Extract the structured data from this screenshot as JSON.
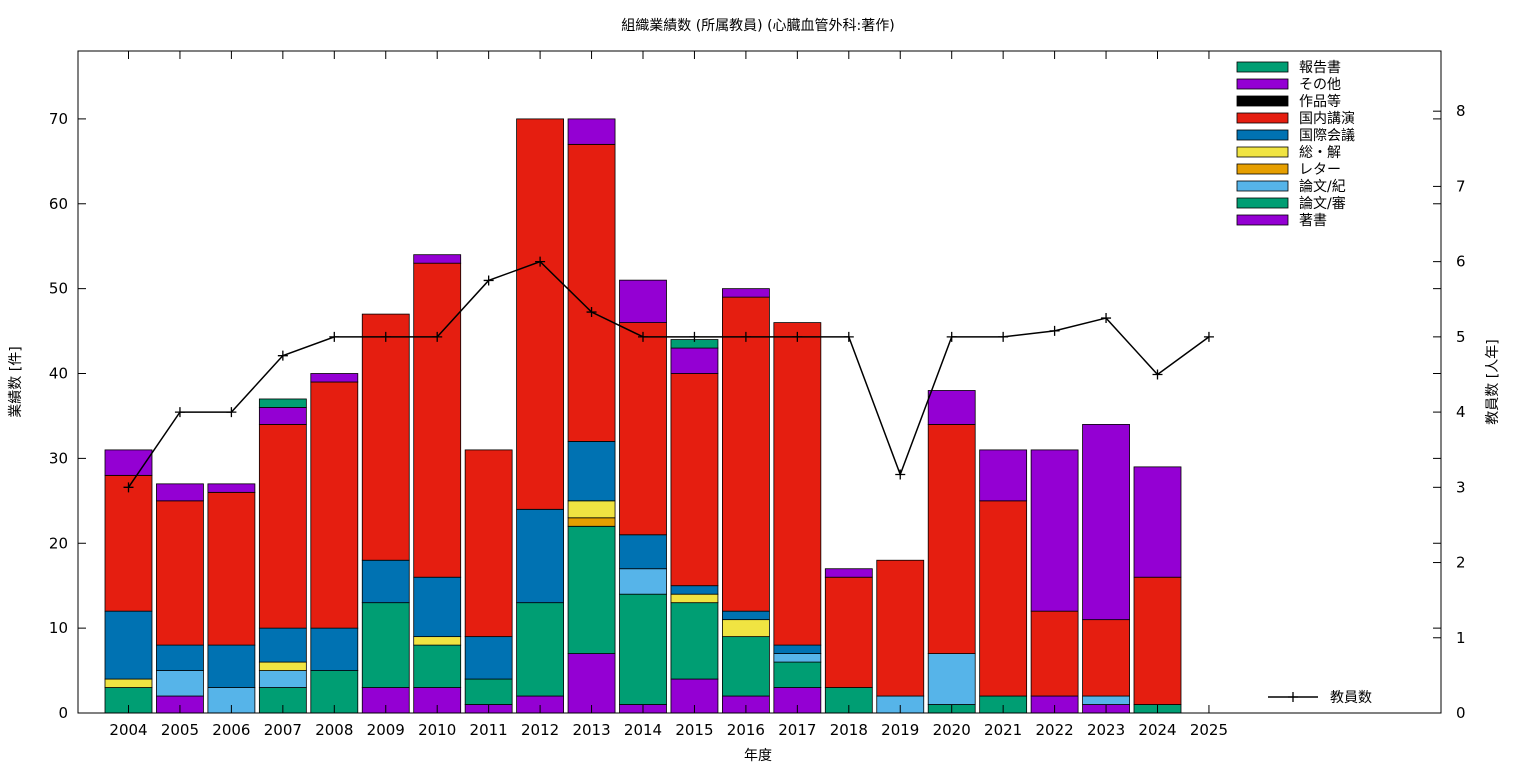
{
  "chart_data": {
    "type": "bar",
    "stacked": true,
    "title": "組織業績数 (所属教員) (心臓血管外科:著作)",
    "xlabel": "年度",
    "ylabel": "業績数 [件]",
    "y2label": "教員数 [人年]",
    "ylim": [
      0,
      78
    ],
    "y2lim": [
      0,
      8.8
    ],
    "yticks": [
      0,
      10,
      20,
      30,
      40,
      50,
      60,
      70
    ],
    "y2ticks": [
      0,
      1,
      2,
      3,
      4,
      5,
      6,
      7,
      8
    ],
    "categories": [
      "2004",
      "2005",
      "2006",
      "2007",
      "2008",
      "2009",
      "2010",
      "2011",
      "2012",
      "2013",
      "2014",
      "2015",
      "2016",
      "2017",
      "2018",
      "2019",
      "2020",
      "2021",
      "2022",
      "2023",
      "2024",
      "2025"
    ],
    "series": [
      {
        "name": "著書",
        "color": "#9400d3",
        "values": [
          0,
          2,
          0,
          0,
          0,
          3,
          3,
          1,
          2,
          7,
          1,
          4,
          2,
          3,
          0,
          0,
          0,
          0,
          2,
          1,
          0,
          0
        ]
      },
      {
        "name": "論文/審",
        "color": "#009e73",
        "values": [
          3,
          0,
          0,
          3,
          5,
          10,
          5,
          3,
          11,
          15,
          13,
          9,
          7,
          3,
          3,
          0,
          1,
          2,
          0,
          0,
          1,
          0
        ]
      },
      {
        "name": "論文/紀",
        "color": "#56b4e9",
        "values": [
          0,
          3,
          3,
          2,
          0,
          0,
          0,
          0,
          0,
          0,
          3,
          0,
          0,
          1,
          0,
          2,
          6,
          0,
          0,
          1,
          0,
          0
        ]
      },
      {
        "name": "レター",
        "color": "#e69f00",
        "values": [
          0,
          0,
          0,
          0,
          0,
          0,
          0,
          0,
          0,
          1,
          0,
          0,
          0,
          0,
          0,
          0,
          0,
          0,
          0,
          0,
          0,
          0
        ]
      },
      {
        "name": "総・解",
        "color": "#f0e442",
        "values": [
          1,
          0,
          0,
          1,
          0,
          0,
          1,
          0,
          0,
          2,
          0,
          1,
          2,
          0,
          0,
          0,
          0,
          0,
          0,
          0,
          0,
          0
        ]
      },
      {
        "name": "国際会議",
        "color": "#0072b2",
        "values": [
          8,
          3,
          5,
          4,
          5,
          5,
          7,
          5,
          11,
          7,
          4,
          1,
          1,
          1,
          0,
          0,
          0,
          0,
          0,
          0,
          0,
          0
        ]
      },
      {
        "name": "国内講演",
        "color": "#e51e10",
        "values": [
          16,
          17,
          18,
          24,
          29,
          29,
          37,
          22,
          46,
          35,
          25,
          25,
          37,
          38,
          13,
          16,
          27,
          23,
          10,
          9,
          15,
          0
        ]
      },
      {
        "name": "作品等",
        "color": "#000000",
        "values": [
          0,
          0,
          0,
          0,
          0,
          0,
          0,
          0,
          0,
          0,
          0,
          0,
          0,
          0,
          0,
          0,
          0,
          0,
          0,
          0,
          0,
          0
        ]
      },
      {
        "name": "その他",
        "color": "#9400d3",
        "values": [
          3,
          2,
          1,
          2,
          1,
          0,
          1,
          0,
          0,
          3,
          5,
          3,
          1,
          0,
          1,
          0,
          4,
          6,
          19,
          23,
          13,
          0
        ]
      },
      {
        "name": "報告書",
        "color": "#009e73",
        "values": [
          0,
          0,
          0,
          1,
          0,
          0,
          0,
          0,
          0,
          0,
          0,
          1,
          0,
          0,
          0,
          0,
          0,
          0,
          0,
          0,
          0,
          0
        ]
      }
    ],
    "line": {
      "name": "教員数",
      "axis": "y2",
      "color": "#000000",
      "values": [
        3,
        4,
        4,
        4.75,
        5,
        5,
        5,
        5.75,
        6,
        5.33,
        5,
        5,
        5,
        5,
        5,
        3.17,
        5,
        5,
        5.08,
        5.25,
        4.5,
        5
      ]
    },
    "legend": "top-right",
    "grid": false
  }
}
